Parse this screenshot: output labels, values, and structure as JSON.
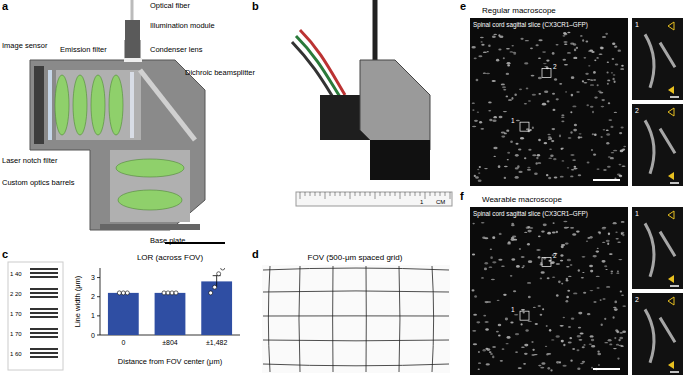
{
  "panel_labels": [
    "a",
    "b",
    "c",
    "d",
    "e",
    "f"
  ],
  "a": {
    "labels": [
      "Image sensor",
      "Laser notch filter",
      "Emission filter",
      "Optical fiber",
      "Illumination module",
      "Condenser lens",
      "Dichroic beamsplitter",
      "Custom optics barrels",
      "Base plate"
    ]
  },
  "b": {
    "ruler_labels": [
      "1",
      "CM"
    ]
  },
  "c": {
    "target_labels": [
      "1 40",
      "2 20",
      "1 70",
      "1 70",
      "1 60"
    ]
  },
  "d": {
    "title": "FOV (500-μm spaced grid)"
  },
  "e": {
    "title": "Regular macroscope",
    "sample": "Spinal cord sagittal slice (CX3CR1–GFP)",
    "insets": [
      "1",
      "2"
    ]
  },
  "f": {
    "title": "Wearable macroscope",
    "sample": "Spinal cord sagittal slice (CX3CR1–GFP)",
    "insets": [
      "1",
      "2"
    ]
  },
  "chart_data": {
    "type": "bar",
    "title": "LOR (across FOV)",
    "x_label": "Distance from FOV center (μm)",
    "y_label": "Line width (μm)",
    "categories": [
      "0",
      "±804",
      "±1,482"
    ],
    "values": [
      2.2,
      2.2,
      2.8
    ],
    "errors": [
      0,
      0,
      0.3
    ],
    "points": [
      [
        2.2,
        2.2,
        2.2
      ],
      [
        2.2,
        2.2,
        2.2,
        2.2
      ],
      [
        2.2,
        2.5,
        3.2,
        3.5
      ]
    ],
    "color": "#2f4ea3",
    "ylim": [
      0,
      3.5
    ],
    "yticks": [
      0,
      1,
      2,
      3
    ]
  }
}
